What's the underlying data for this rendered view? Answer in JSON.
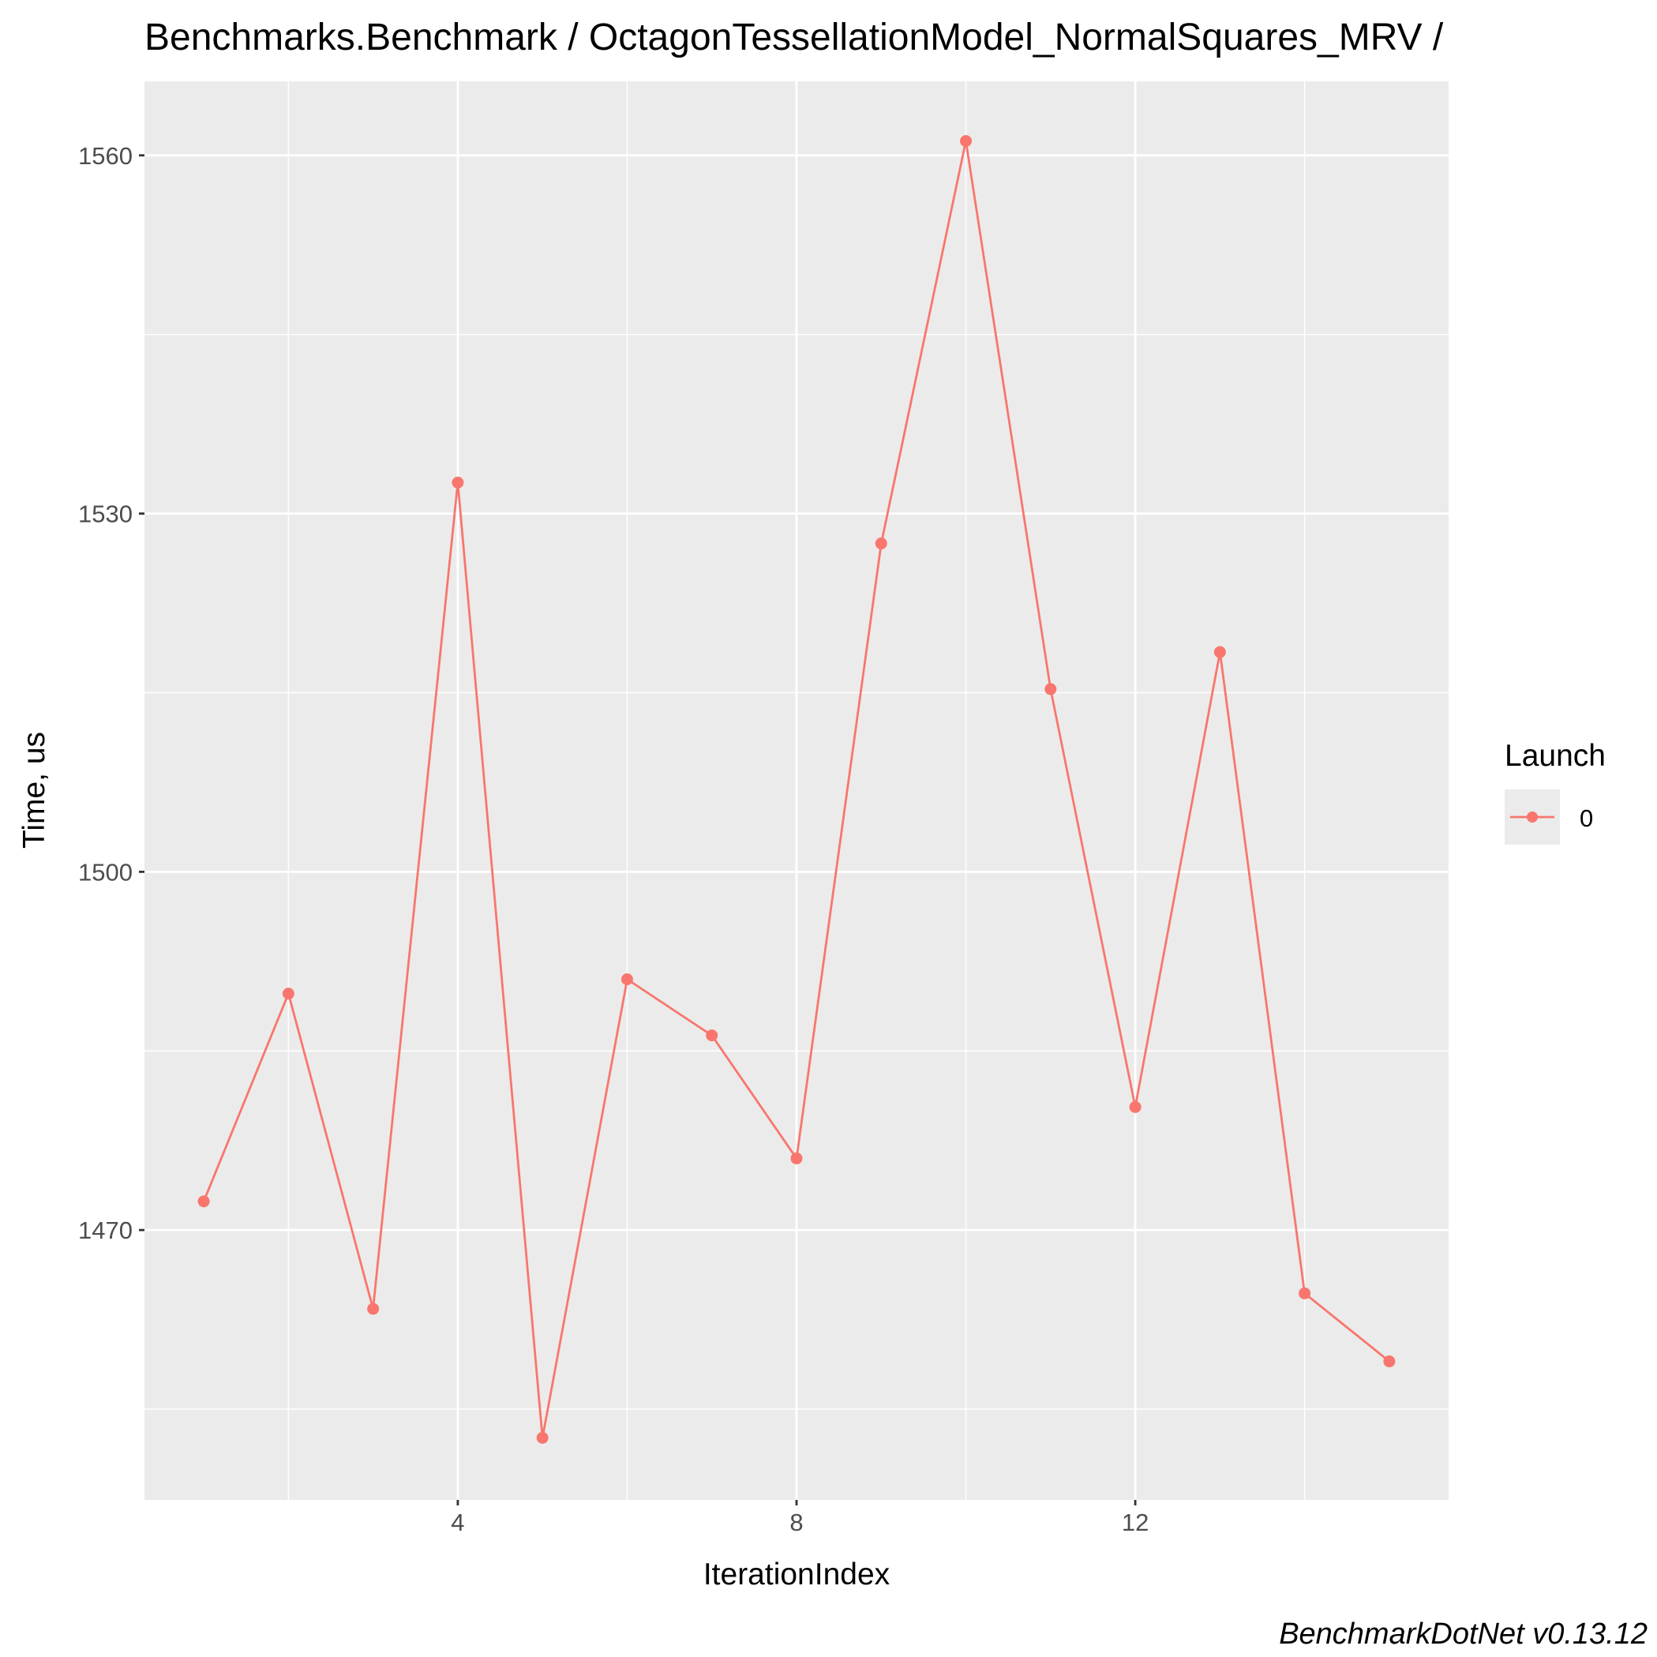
{
  "chart_data": {
    "type": "line",
    "title": "Benchmarks.Benchmark / OctagonTessellationModel_NormalSquares_MRV /",
    "xlabel": "IterationIndex",
    "ylabel": "Time, us",
    "caption": "BenchmarkDotNet v0.13.12",
    "x": [
      1,
      2,
      3,
      4,
      5,
      6,
      7,
      8,
      9,
      10,
      11,
      12,
      13,
      14,
      15
    ],
    "series": [
      {
        "name": "0",
        "values": [
          1472.4,
          1489.8,
          1463.4,
          1532.6,
          1452.6,
          1491.0,
          1486.3,
          1476.0,
          1527.5,
          1561.2,
          1515.3,
          1480.3,
          1518.4,
          1464.7,
          1459.0
        ],
        "color": "#f8766d"
      }
    ],
    "xlim": [
      0.3,
      15.7
    ],
    "ylim": [
      1447.4,
      1566.2
    ],
    "x_ticks": [
      4,
      8,
      12
    ],
    "x_tick_labels": [
      "4",
      "8",
      "12"
    ],
    "y_ticks": [
      1470,
      1500,
      1530,
      1560
    ],
    "y_tick_labels": [
      "1470",
      "1500",
      "1530",
      "1560"
    ],
    "x_minor_ticks": [
      2,
      6,
      10,
      14
    ],
    "y_minor_ticks": [
      1455,
      1485,
      1515,
      1545
    ],
    "grid": true,
    "legend": {
      "title": "Launch",
      "placement": "right"
    },
    "colors": {
      "panel_background": "#ebebeb",
      "grid": "#ffffff",
      "series": "#f8766d"
    }
  }
}
